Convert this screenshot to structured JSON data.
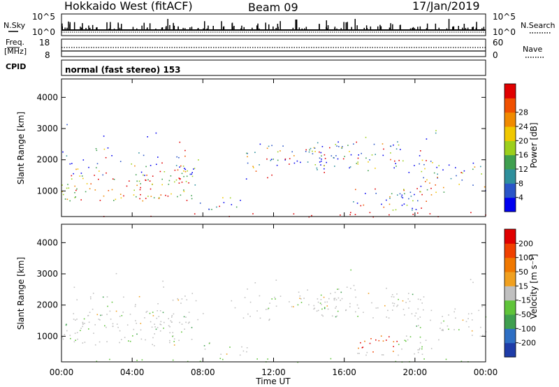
{
  "header": {
    "station": "Hokkaido West (fitACF)",
    "beam": "Beam 09",
    "date": "17/Jan/2019"
  },
  "top_panel": {
    "left_label": "N.Sky",
    "right_label": "N.Search",
    "left_ticks": [
      "10^5",
      "10^0"
    ],
    "right_ticks": [
      "10^5",
      "10^0"
    ]
  },
  "freq_panel": {
    "left_label_line1": "Freq.",
    "left_label_line2": "[MHz]",
    "left_ticks": [
      "18",
      "8"
    ],
    "right_ticks": [
      "60",
      "0"
    ],
    "right_label": "Nave"
  },
  "cpid_panel": {
    "label": "CPID",
    "value": "normal (fast stereo) 153"
  },
  "chart_data": [
    {
      "type": "heatmap",
      "title": "",
      "xlabel": "",
      "ylabel": "Slant Range [km]",
      "x_ticks": [
        "00:00",
        "04:00",
        "08:00",
        "12:00",
        "16:00",
        "20:00",
        "00:00"
      ],
      "y_ticks": [
        1000,
        2000,
        3000,
        4000
      ],
      "xlim_hours": [
        0,
        24
      ],
      "ylim_km": [
        180,
        4590
      ],
      "colorbar_label": "Power [dB]",
      "colorbar_ticks": [
        "4",
        "8",
        "12",
        "16",
        "20",
        "24",
        "28"
      ],
      "colorbar_colors": [
        "#0000f0",
        "#2a55c8",
        "#2e8f9c",
        "#3f9f4f",
        "#9ccf1c",
        "#f0c800",
        "#f08a00",
        "#f05000",
        "#e00000"
      ]
    },
    {
      "type": "heatmap",
      "title": "",
      "xlabel": "Time UT",
      "ylabel": "Slant Range [km]",
      "x_ticks": [
        "00:00",
        "04:00",
        "08:00",
        "12:00",
        "16:00",
        "20:00",
        "00:00"
      ],
      "y_ticks": [
        1000,
        2000,
        3000,
        4000
      ],
      "xlim_hours": [
        0,
        24
      ],
      "ylim_km": [
        180,
        4590
      ],
      "colorbar_label": "Velocity [m s⁻¹]",
      "colorbar_ticks": [
        "200",
        "100",
        "50",
        "15",
        "-15",
        "-50",
        "-100",
        "-200"
      ],
      "colorbar_colors": [
        "#1e3ca8",
        "#2e6fc4",
        "#3f9f4f",
        "#5fc43a",
        "#c0c0c0",
        "#f0a020",
        "#f07800",
        "#f04000",
        "#e00000"
      ]
    }
  ]
}
